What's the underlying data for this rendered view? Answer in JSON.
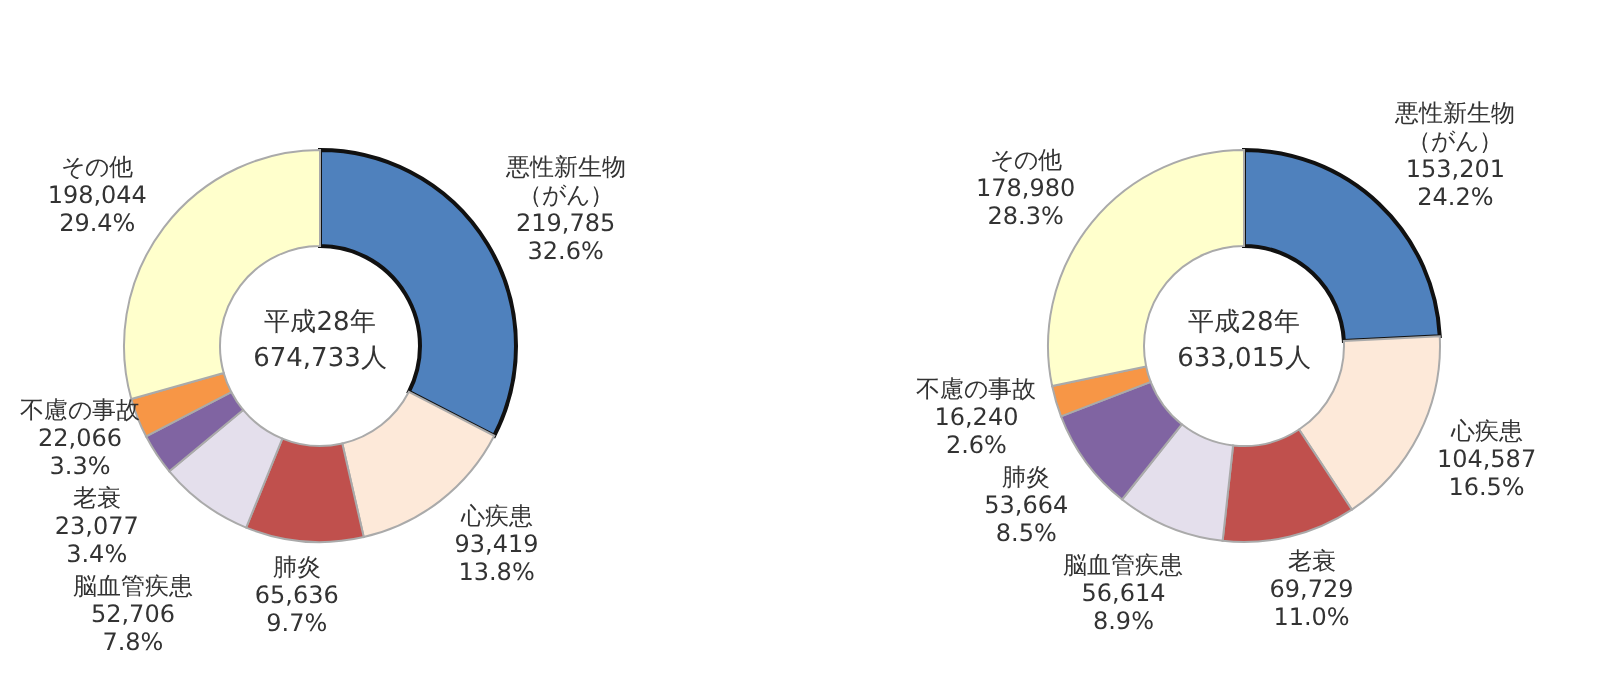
{
  "chart_data": [
    {
      "type": "donut",
      "title": "平成28年",
      "subtitle": "674,733人",
      "categories": [
        "悪性新生物（がん）",
        "心疾患",
        "肺炎",
        "脳血管疾患",
        "老衰",
        "不慮の事故",
        "その他"
      ],
      "values": [
        219785,
        93419,
        65636,
        52706,
        23077,
        22066,
        198044
      ],
      "value_labels": [
        "219,785\n32.6%",
        "93,419\n13.8%",
        "65,636\n9.7%",
        "52,706\n7.8%",
        "23,077\n3.4%",
        "22,066\n3.3%",
        "198,044\n29.4%"
      ],
      "colors": [
        "#4f81bd",
        "#fde9d9",
        "#c0504d",
        "#e4dfec",
        "#8064a2",
        "#f79646",
        "#ffffcc"
      ]
    },
    {
      "type": "donut",
      "title": "平成28年",
      "subtitle": "633,015人",
      "categories": [
        "悪性新生物（がん）",
        "心疾患",
        "老衰",
        "脳血管疾患",
        "肺炎",
        "不慮の事故",
        "その他"
      ],
      "values": [
        153201,
        104587,
        69729,
        56614,
        53664,
        16240,
        178980
      ],
      "value_labels": [
        "153,201\n24.2%",
        "104,587\n16.5%",
        "69,729\n11.0%",
        "56,614\n8.9%",
        "53,664\n8.5%",
        "16,240\n2.6%",
        "178,980\n28.3%"
      ],
      "colors": [
        "#4f81bd",
        "#fde9d9",
        "#c0504d",
        "#e4dfec",
        "#8064a2",
        "#f79646",
        "#ffffcc"
      ]
    }
  ]
}
